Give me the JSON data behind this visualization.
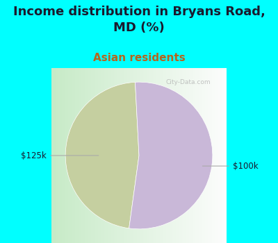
{
  "title": "Income distribution in Bryans Road,\nMD (%)",
  "subtitle": "Asian residents",
  "title_color": "#1a1a2e",
  "subtitle_color": "#b5651d",
  "background_color": "#00ffff",
  "slices": [
    {
      "label": "$125k",
      "value": 47,
      "color": "#c5cfa0"
    },
    {
      "label": "$100k",
      "value": 53,
      "color": "#c9b8d8"
    }
  ],
  "label_color": "#1a1a2e",
  "label_fontsize": 8.5,
  "title_fontsize": 13,
  "subtitle_fontsize": 11,
  "watermark": "City-Data.com"
}
